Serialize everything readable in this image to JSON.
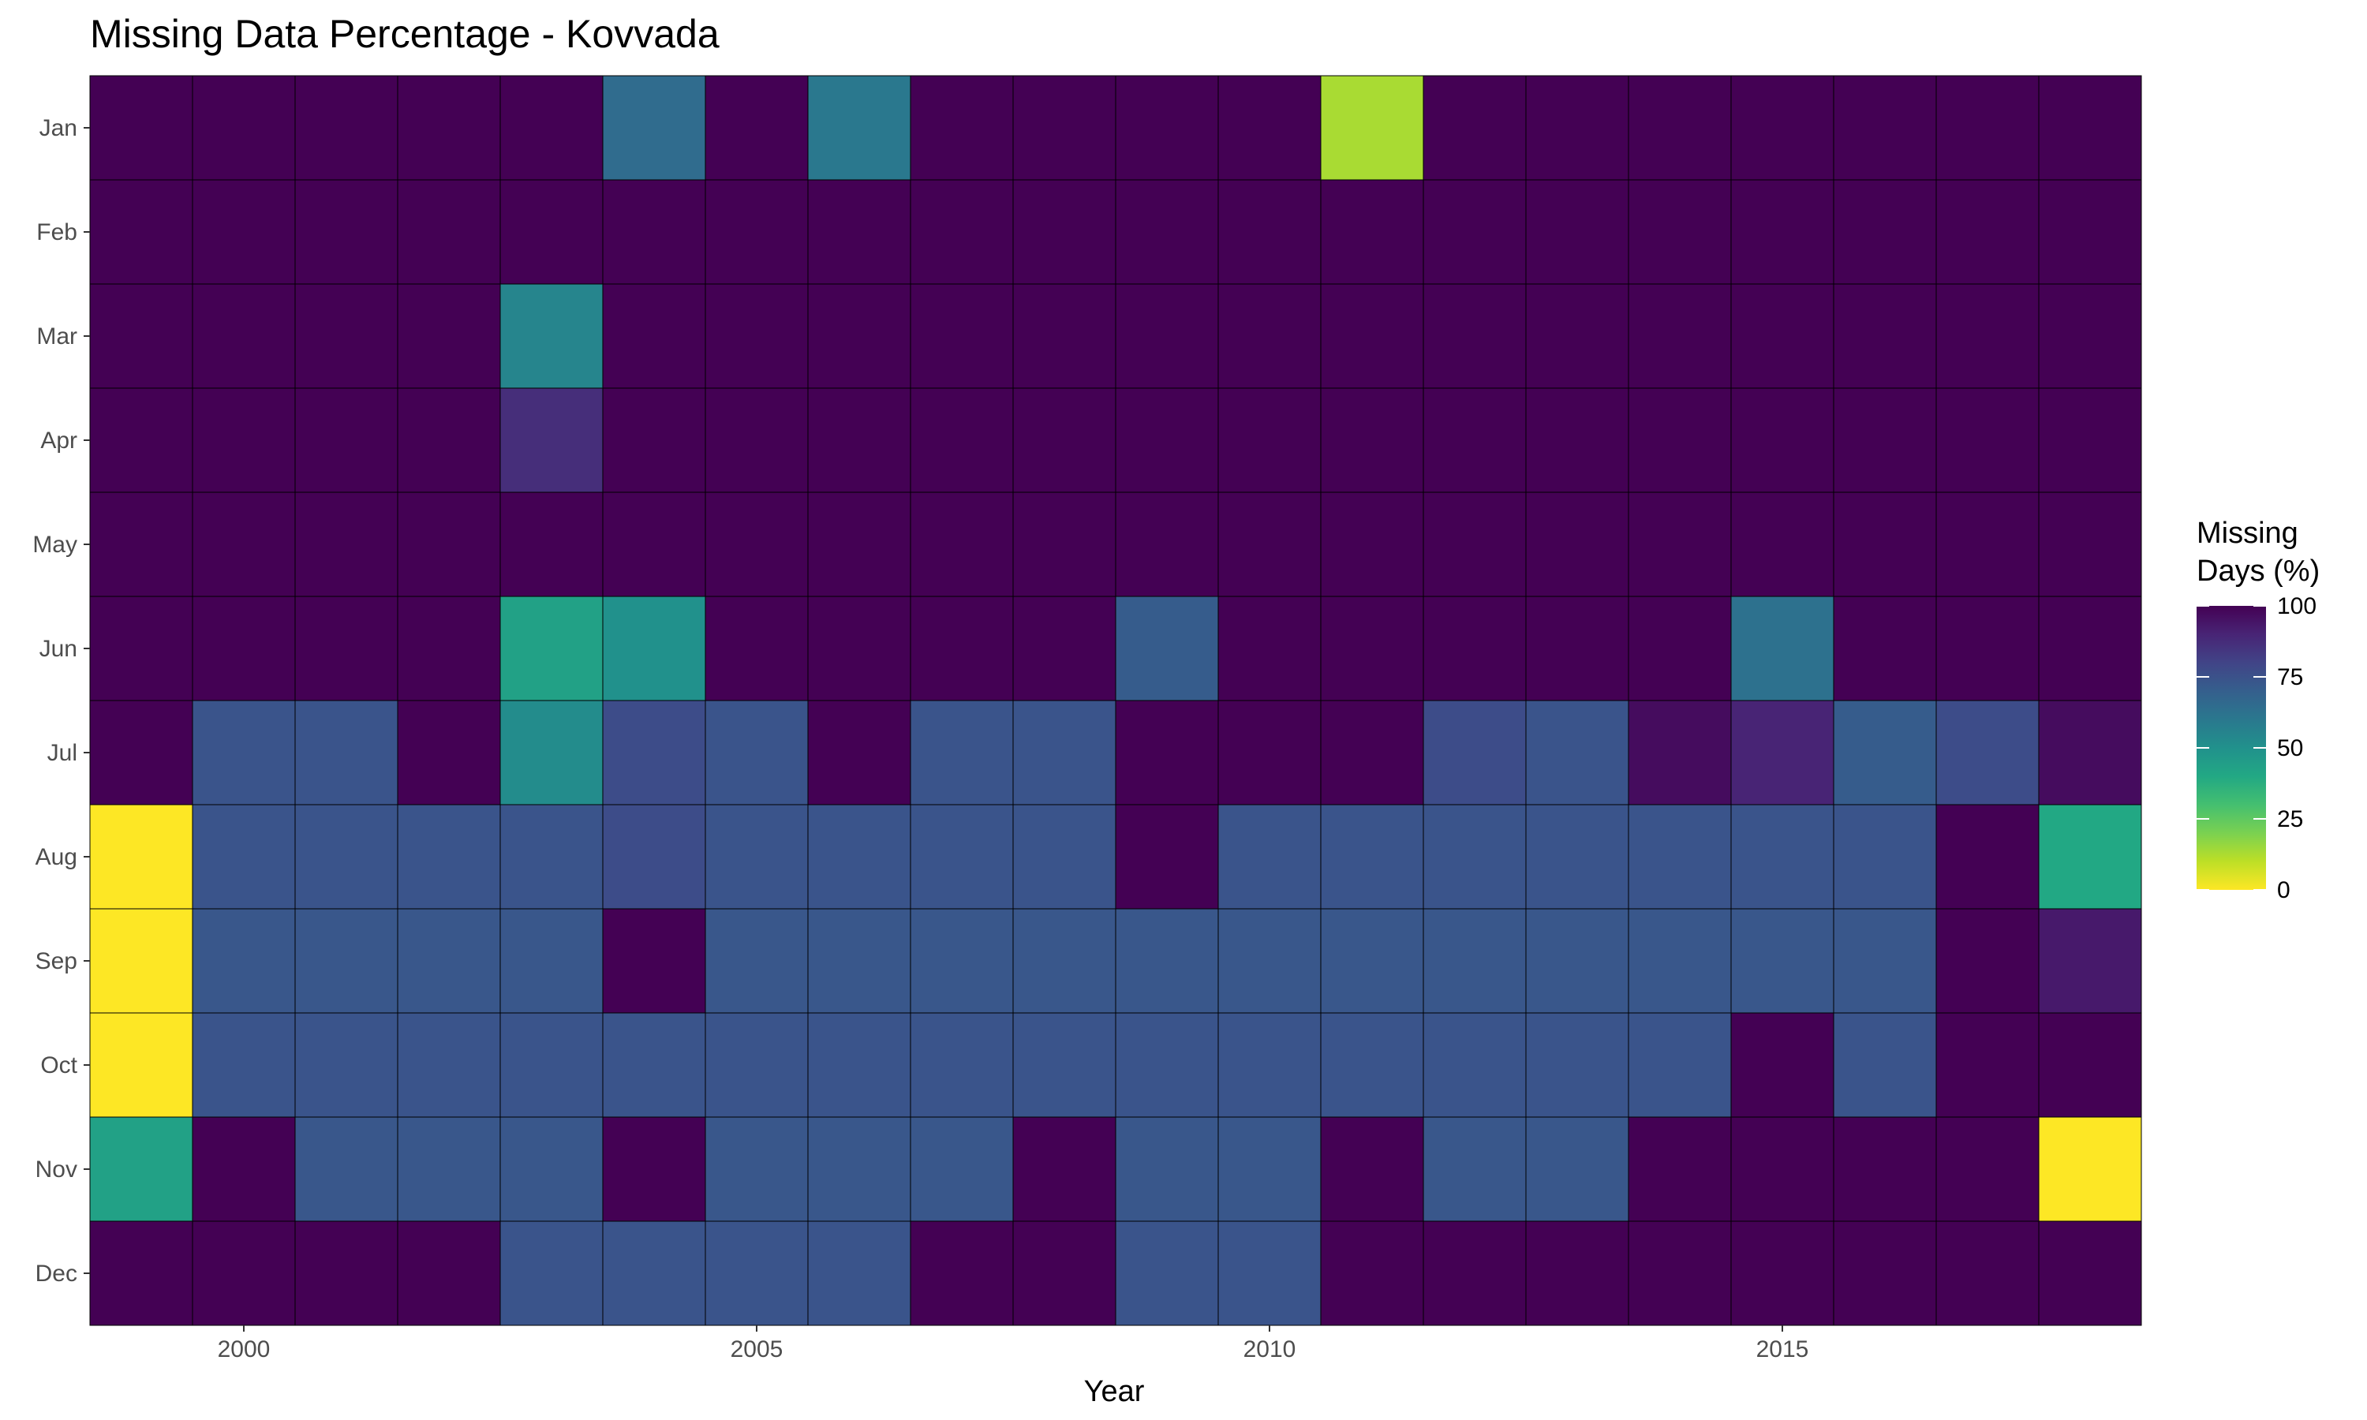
{
  "chart_data": {
    "type": "heatmap",
    "title": "Missing Data Percentage - Kovvada",
    "xlabel": "Year",
    "ylabel": "",
    "x": [
      1999,
      2000,
      2001,
      2002,
      2003,
      2004,
      2005,
      2006,
      2007,
      2008,
      2009,
      2010,
      2011,
      2012,
      2013,
      2014,
      2015,
      2016,
      2017,
      2018
    ],
    "x_ticks": [
      2000,
      2005,
      2010,
      2015
    ],
    "x_tick_labels": [
      "2000",
      "2005",
      "2010",
      "2015"
    ],
    "y": [
      "Jan",
      "Feb",
      "Mar",
      "Apr",
      "May",
      "Jun",
      "Jul",
      "Aug",
      "Sep",
      "Oct",
      "Nov",
      "Dec"
    ],
    "values": [
      [
        100,
        100,
        100,
        100,
        100,
        65,
        100,
        60,
        100,
        100,
        100,
        100,
        13,
        100,
        100,
        100,
        100,
        100,
        100,
        100
      ],
      [
        100,
        100,
        100,
        100,
        100,
        100,
        100,
        100,
        100,
        100,
        100,
        100,
        100,
        100,
        100,
        100,
        100,
        100,
        100,
        100
      ],
      [
        100,
        100,
        100,
        100,
        55,
        100,
        100,
        100,
        100,
        100,
        100,
        100,
        100,
        100,
        100,
        100,
        100,
        100,
        100,
        100
      ],
      [
        100,
        100,
        100,
        100,
        87,
        100,
        100,
        100,
        100,
        100,
        100,
        100,
        100,
        100,
        100,
        100,
        100,
        100,
        100,
        100
      ],
      [
        100,
        100,
        100,
        100,
        100,
        100,
        100,
        100,
        100,
        100,
        100,
        100,
        100,
        100,
        100,
        100,
        100,
        100,
        100,
        100
      ],
      [
        100,
        100,
        100,
        100,
        43,
        50,
        100,
        100,
        100,
        100,
        71,
        100,
        100,
        100,
        100,
        100,
        63,
        100,
        100,
        100
      ],
      [
        100,
        74,
        74,
        100,
        52,
        77,
        74,
        100,
        74,
        74,
        100,
        100,
        100,
        77,
        74,
        97,
        90,
        71,
        77,
        97
      ],
      [
        0,
        74,
        74,
        74,
        74,
        77,
        74,
        74,
        74,
        74,
        100,
        74,
        74,
        74,
        74,
        74,
        74,
        74,
        100,
        40
      ],
      [
        0,
        73,
        73,
        73,
        73,
        100,
        73,
        73,
        73,
        73,
        73,
        73,
        73,
        73,
        73,
        73,
        73,
        73,
        100,
        93
      ],
      [
        0,
        74,
        74,
        74,
        74,
        74,
        74,
        74,
        74,
        74,
        74,
        74,
        74,
        74,
        74,
        74,
        100,
        74,
        100,
        100
      ],
      [
        43,
        100,
        73,
        73,
        73,
        100,
        73,
        73,
        73,
        100,
        73,
        73,
        100,
        73,
        73,
        100,
        100,
        100,
        100,
        0
      ],
      [
        100,
        100,
        100,
        100,
        74,
        74,
        74,
        74,
        100,
        100,
        74,
        74,
        100,
        100,
        100,
        100,
        100,
        100,
        100,
        100
      ]
    ],
    "color_scale": "viridis-reversed",
    "legend": {
      "title_lines": [
        "Missing",
        "Days (%)"
      ],
      "ticks": [
        100,
        75,
        50,
        25,
        0
      ],
      "tick_labels": [
        "100",
        "75",
        "50",
        "25",
        "0"
      ],
      "position": "right"
    },
    "zlim": [
      0,
      100
    ],
    "grid": false
  }
}
